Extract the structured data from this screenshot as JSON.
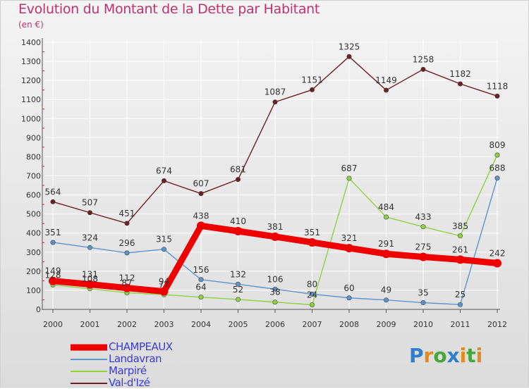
{
  "chart_data": {
    "type": "line",
    "title": "Evolution du Montant de la Dette par Habitant",
    "ylabel": "(en €)",
    "x": [
      "2000",
      "2001",
      "2002",
      "2003",
      "2004",
      "2005",
      "2006",
      "2007",
      "2008",
      "2009",
      "2010",
      "2011",
      "2012"
    ],
    "ylim": [
      0,
      1400
    ],
    "yticks": [
      0,
      100,
      200,
      300,
      400,
      500,
      600,
      700,
      800,
      900,
      1000,
      1100,
      1200,
      1300,
      1400
    ],
    "series": [
      {
        "name": "Val-d'Izé",
        "color": "#6e1f24",
        "values": [
          564,
          507,
          451,
          674,
          607,
          681,
          1087,
          1151,
          1325,
          1149,
          1258,
          1182,
          1118
        ]
      },
      {
        "name": "Marpiré",
        "color": "#8fd33f",
        "values": [
          128,
          108,
          87,
          77,
          64,
          52,
          38,
          24,
          687,
          484,
          433,
          385,
          809
        ]
      },
      {
        "name": "Landavran",
        "color": "#5b95cf",
        "values": [
          351,
          324,
          296,
          315,
          156,
          132,
          106,
          80,
          60,
          49,
          35,
          25,
          688
        ]
      },
      {
        "name": "CHAMPEAUX",
        "color": "#ee0000",
        "values": [
          149,
          131,
          112,
          94,
          438,
          410,
          381,
          351,
          321,
          291,
          275,
          261,
          242
        ]
      }
    ],
    "legend": [
      "CHAMPEAUX",
      "Landavran",
      "Marpiré",
      "Val-d'Izé"
    ]
  },
  "logo": {
    "text": "Proxiti"
  }
}
